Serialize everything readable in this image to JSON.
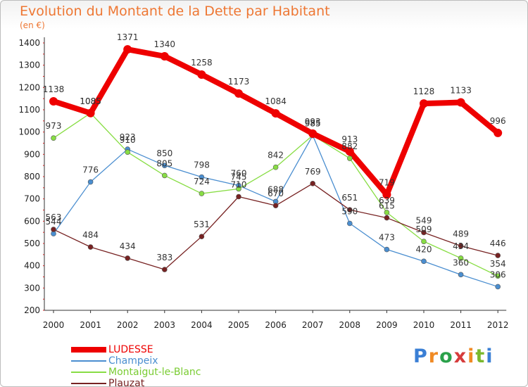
{
  "header": {
    "title": "Evolution du Montant de la Dette par Habitant",
    "subtitle": "(en €)"
  },
  "logo": {
    "text": "Proxiti",
    "colors": [
      "#3a7fd5",
      "#f08a24",
      "#2aa14a",
      "#d63b3b",
      "#f08a24",
      "#7ab82e",
      "#3a7fd5"
    ]
  },
  "chart_data": {
    "type": "line",
    "title": "Evolution du Montant de la Dette par Habitant",
    "subtitle": "(en €)",
    "x": [
      "2000",
      "2001",
      "2002",
      "2003",
      "2004",
      "2005",
      "2006",
      "2007",
      "2008",
      "2009",
      "2010",
      "2011",
      "2012"
    ],
    "ylim": [
      200,
      1400
    ],
    "yticks": [
      200,
      300,
      400,
      500,
      600,
      700,
      800,
      900,
      1000,
      1100,
      1200,
      1300,
      1400
    ],
    "grid": false,
    "legend_position": "bottom-left",
    "series": [
      {
        "name": "LUDESSE",
        "color": "#ee0000",
        "values": [
          1138,
          1085,
          1371,
          1340,
          1258,
          1173,
          1084,
          993,
          913,
          719,
          1128,
          1133,
          996
        ]
      },
      {
        "name": "Champeix",
        "color": "#4a8ed0",
        "values": [
          544,
          776,
          923,
          850,
          798,
          760,
          688,
          985,
          590,
          473,
          420,
          360,
          306
        ]
      },
      {
        "name": "Montaigut-le-Blanc",
        "color": "#88dd44",
        "values": [
          973,
          1085,
          910,
          805,
          724,
          745,
          842,
          985,
          882,
          639,
          509,
          434,
          354
        ]
      },
      {
        "name": "Plauzat",
        "color": "#772222",
        "values": [
          563,
          484,
          434,
          383,
          531,
          710,
          670,
          769,
          651,
          615,
          549,
          489,
          446
        ]
      }
    ]
  }
}
